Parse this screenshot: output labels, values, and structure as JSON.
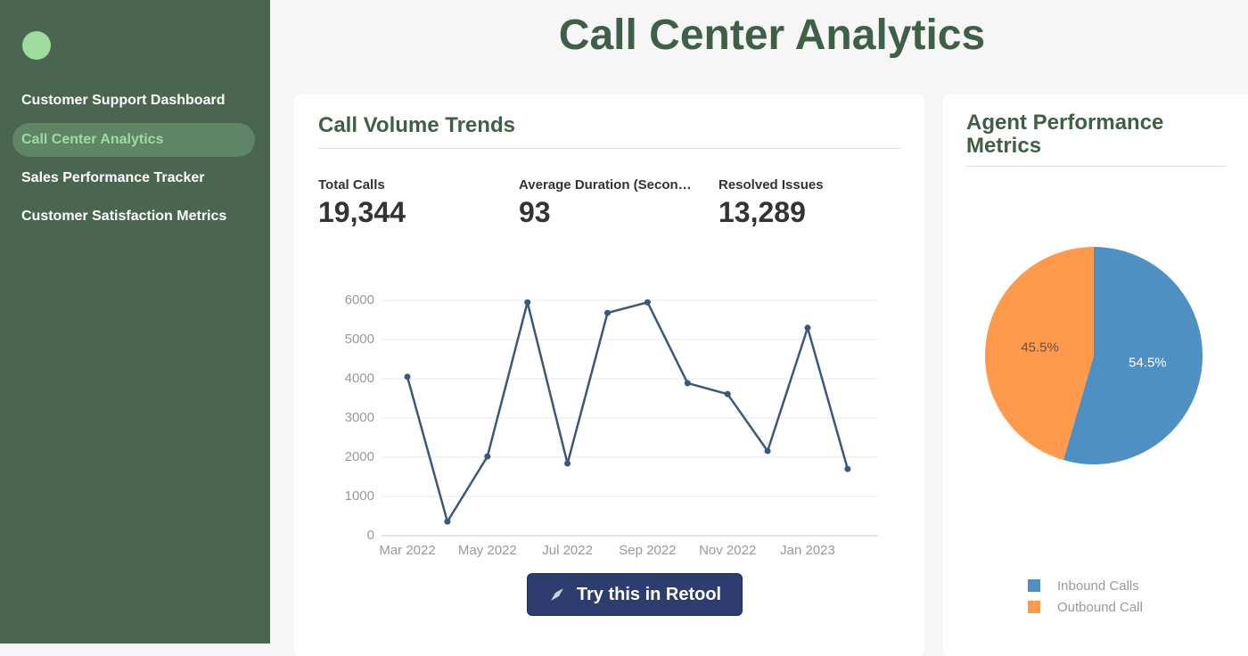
{
  "sidebar": {
    "nav": [
      "Customer Support Dashboard",
      "Call Center Analytics",
      "Sales Performance Tracker",
      "Customer Satisfaction Metrics"
    ]
  },
  "header": {
    "title": "Call Center Analytics"
  },
  "stats": [
    {
      "label": "Total Calls",
      "value": "19,344"
    },
    {
      "label": "Average Duration (Secon…",
      "value": "93"
    },
    {
      "label": "Resolved Issues",
      "value": "13,289"
    }
  ],
  "button": {
    "label": "Try this in Retool"
  },
  "chart_data": [
    {
      "type": "line",
      "title": "Call Volume Trends",
      "categories": [
        "Mar 2022",
        null,
        "May 2022",
        null,
        "Jul 2022",
        null,
        "Sep 2022",
        null,
        "Nov 2022",
        null,
        "Jan 2023",
        null
      ],
      "values": [
        4050,
        360,
        2020,
        5950,
        1840,
        5680,
        5950,
        3890,
        3610,
        2160,
        5300,
        1700
      ],
      "color": "#3b5878",
      "ylim": [
        0,
        6000
      ],
      "yticks": [
        0,
        1000,
        2000,
        3000,
        4000,
        5000,
        6000
      ],
      "grid": true
    },
    {
      "type": "pie",
      "title": "Agent Performance Metrics",
      "categories": [
        "Inbound Calls",
        "Outbound Call"
      ],
      "values": [
        54.5,
        45.5
      ],
      "value_labels": [
        "54.5%",
        "45.5%"
      ],
      "colors": [
        "#4f90c2",
        "#ff9a4d"
      ],
      "legend": "bottom"
    }
  ]
}
